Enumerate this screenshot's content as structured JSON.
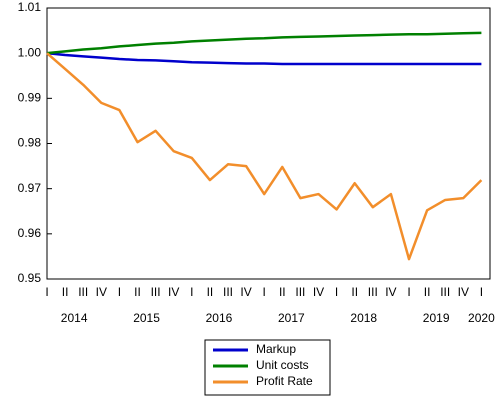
{
  "chart_data": {
    "type": "line",
    "categories": [
      "I",
      "II",
      "III",
      "IV",
      "I",
      "II",
      "III",
      "IV",
      "I",
      "II",
      "III",
      "IV",
      "I",
      "II",
      "III",
      "IV",
      "I",
      "II",
      "III",
      "IV",
      "I",
      "II",
      "III",
      "IV",
      "I"
    ],
    "x_groups": [
      "2014",
      "2015",
      "2016",
      "2017",
      "2018",
      "2019",
      "2020"
    ],
    "series": [
      {
        "name": "Markup",
        "color": "#0000cc",
        "values": [
          1.0,
          0.9996,
          0.9993,
          0.999,
          0.9987,
          0.9985,
          0.9984,
          0.9982,
          0.998,
          0.9979,
          0.9978,
          0.9977,
          0.9977,
          0.9976,
          0.9976,
          0.9976,
          0.9976,
          0.9976,
          0.9976,
          0.9976,
          0.9976,
          0.9976,
          0.9976,
          0.9976,
          0.9976
        ]
      },
      {
        "name": "Unit costs",
        "color": "#008000",
        "values": [
          1.0,
          1.0004,
          1.0008,
          1.0011,
          1.0015,
          1.0018,
          1.0021,
          1.0023,
          1.0026,
          1.0028,
          1.003,
          1.0032,
          1.0033,
          1.0035,
          1.0036,
          1.0037,
          1.0038,
          1.0039,
          1.004,
          1.0041,
          1.0042,
          1.0042,
          1.0043,
          1.0044,
          1.0045
        ]
      },
      {
        "name": "Profit Rate",
        "color": "#f28e2b",
        "values": [
          1.0,
          0.9965,
          0.993,
          0.989,
          0.9874,
          0.9803,
          0.9828,
          0.9783,
          0.9768,
          0.9719,
          0.9754,
          0.975,
          0.9688,
          0.9748,
          0.9679,
          0.9688,
          0.9654,
          0.9712,
          0.9659,
          0.9688,
          0.9544,
          0.9652,
          0.9675,
          0.9679,
          0.9719
        ]
      }
    ],
    "ylim": [
      0.95,
      1.01
    ],
    "yticks": [
      0.95,
      0.96,
      0.97,
      0.98,
      0.99,
      {
        "value": 1.0,
        "label": "1.00"
      },
      1.01
    ],
    "grid": false,
    "legend": "bottom"
  }
}
